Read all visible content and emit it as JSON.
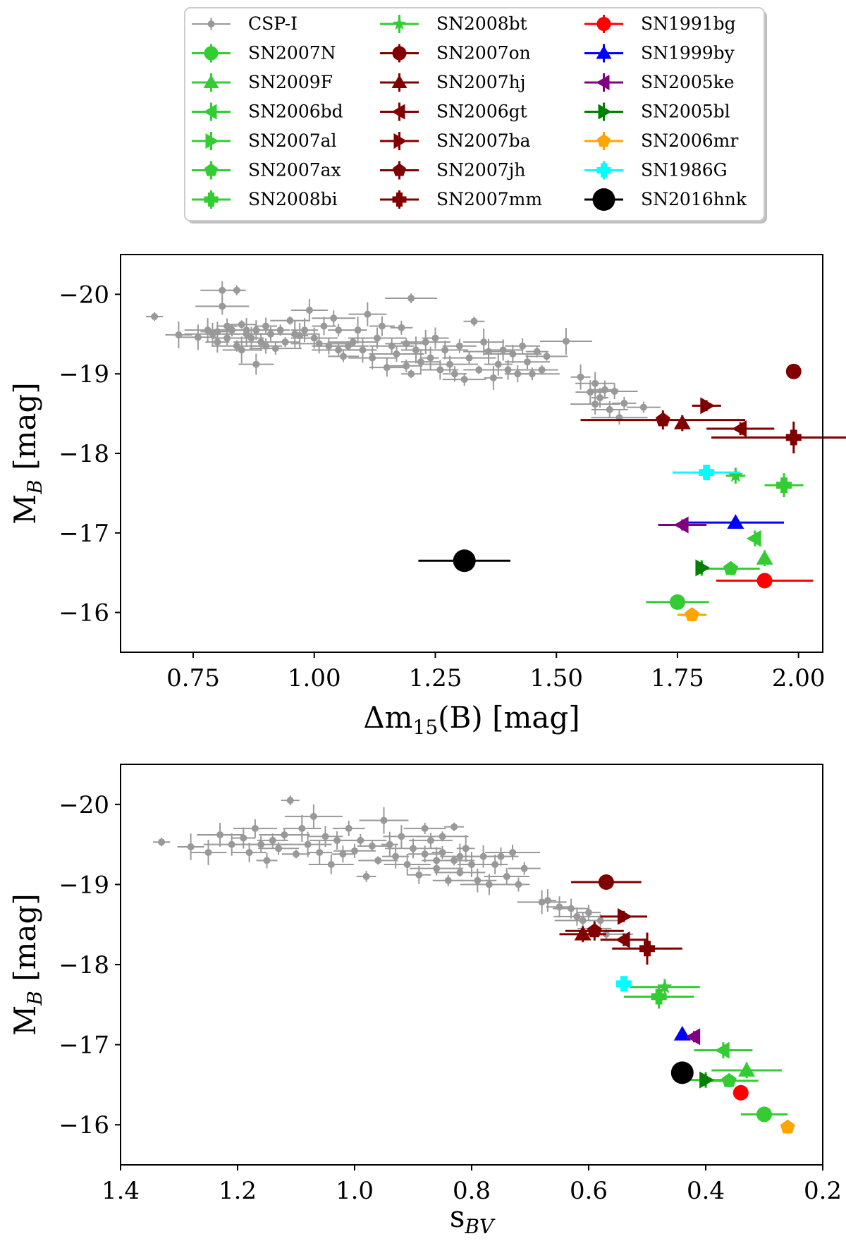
{
  "figure": {
    "legend": {
      "entries": [
        {
          "label": "CSP-I",
          "color": "#999999",
          "marker": "circle-small"
        },
        {
          "label": "SN2007N",
          "color": "#33cc33",
          "marker": "circle"
        },
        {
          "label": "SN2009F",
          "color": "#33cc33",
          "marker": "triangle-up"
        },
        {
          "label": "SN2006bd",
          "color": "#33cc33",
          "marker": "triangle-left"
        },
        {
          "label": "SN2007al",
          "color": "#33cc33",
          "marker": "triangle-right"
        },
        {
          "label": "SN2007ax",
          "color": "#33cc33",
          "marker": "pentagon"
        },
        {
          "label": "SN2008bi",
          "color": "#33cc33",
          "marker": "plus"
        },
        {
          "label": "SN2008bt",
          "color": "#33cc33",
          "marker": "star"
        },
        {
          "label": "SN2007on",
          "color": "#800000",
          "marker": "circle"
        },
        {
          "label": "SN2007hj",
          "color": "#800000",
          "marker": "triangle-up"
        },
        {
          "label": "SN2006gt",
          "color": "#800000",
          "marker": "triangle-left"
        },
        {
          "label": "SN2007ba",
          "color": "#800000",
          "marker": "triangle-right"
        },
        {
          "label": "SN2007jh",
          "color": "#800000",
          "marker": "pentagon"
        },
        {
          "label": "SN2007mm",
          "color": "#800000",
          "marker": "plus"
        },
        {
          "label": "SN1991bg",
          "color": "#ff0000",
          "marker": "circle"
        },
        {
          "label": "SN1999by",
          "color": "#0000ff",
          "marker": "triangle-up"
        },
        {
          "label": "SN2005ke",
          "color": "#800080",
          "marker": "triangle-left"
        },
        {
          "label": "SN2005bl",
          "color": "#007f00",
          "marker": "triangle-right"
        },
        {
          "label": "SN2006mr",
          "color": "#ffa500",
          "marker": "pentagon"
        },
        {
          "label": "SN1986G",
          "color": "#00ffff",
          "marker": "plus"
        },
        {
          "label": "SN2016hnk",
          "color": "#000000",
          "marker": "circle-big"
        }
      ]
    }
  },
  "chart_data": [
    {
      "type": "scatter",
      "title": "",
      "xlabel": "Δm15(B) [mag]",
      "ylabel": "MB [mag]",
      "xlim": [
        0.6,
        2.05
      ],
      "ylim": [
        -15.5,
        -20.5
      ],
      "y_inverted": true,
      "xticks": [
        0.75,
        1.0,
        1.25,
        1.5,
        1.75,
        2.0
      ],
      "xtick_labels": [
        "0.75",
        "1.00",
        "1.25",
        "1.50",
        "1.75",
        "2.00"
      ],
      "yticks": [
        -20,
        -19,
        -18,
        -17,
        -16
      ],
      "ytick_labels": [
        "−20",
        "−19",
        "−18",
        "−17",
        "−16"
      ],
      "grid": false,
      "csp_points": [
        [
          0.67,
          -19.72
        ],
        [
          0.72,
          -19.49
        ],
        [
          0.76,
          -19.46
        ],
        [
          0.78,
          -19.55
        ],
        [
          0.79,
          -19.5
        ],
        [
          0.8,
          -19.4
        ],
        [
          0.8,
          -19.53
        ],
        [
          0.81,
          -20.05
        ],
        [
          0.81,
          -19.85
        ],
        [
          0.82,
          -19.6
        ],
        [
          0.82,
          -19.45
        ],
        [
          0.83,
          -19.55
        ],
        [
          0.84,
          -19.35
        ],
        [
          0.84,
          -20.05
        ],
        [
          0.85,
          -19.62
        ],
        [
          0.85,
          -19.3
        ],
        [
          0.86,
          -19.5
        ],
        [
          0.86,
          -19.55
        ],
        [
          0.87,
          -19.45
        ],
        [
          0.88,
          -19.12
        ],
        [
          0.88,
          -19.55
        ],
        [
          0.89,
          -19.4
        ],
        [
          0.9,
          -19.6
        ],
        [
          0.9,
          -19.35
        ],
        [
          0.91,
          -19.5
        ],
        [
          0.92,
          -19.32
        ],
        [
          0.93,
          -19.55
        ],
        [
          0.94,
          -19.4
        ],
        [
          0.95,
          -19.67
        ],
        [
          0.96,
          -19.5
        ],
        [
          0.97,
          -19.48
        ],
        [
          0.98,
          -19.55
        ],
        [
          0.99,
          -19.8
        ],
        [
          1.0,
          -19.45
        ],
        [
          1.01,
          -19.38
        ],
        [
          1.02,
          -19.6
        ],
        [
          1.03,
          -19.35
        ],
        [
          1.04,
          -19.7
        ],
        [
          1.05,
          -19.3
        ],
        [
          1.05,
          -19.55
        ],
        [
          1.06,
          -19.22
        ],
        [
          1.07,
          -19.35
        ],
        [
          1.08,
          -19.4
        ],
        [
          1.09,
          -19.55
        ],
        [
          1.1,
          -19.3
        ],
        [
          1.11,
          -19.75
        ],
        [
          1.12,
          -19.2
        ],
        [
          1.13,
          -19.45
        ],
        [
          1.14,
          -19.6
        ],
        [
          1.15,
          -19.08
        ],
        [
          1.16,
          -19.35
        ],
        [
          1.17,
          -19.25
        ],
        [
          1.18,
          -19.58
        ],
        [
          1.19,
          -19.1
        ],
        [
          1.19,
          -19.38
        ],
        [
          1.2,
          -19.95
        ],
        [
          1.2,
          -19.0
        ],
        [
          1.21,
          -19.3
        ],
        [
          1.22,
          -19.15
        ],
        [
          1.23,
          -19.4
        ],
        [
          1.24,
          -19.2
        ],
        [
          1.25,
          -19.45
        ],
        [
          1.26,
          -19.05
        ],
        [
          1.27,
          -19.3
        ],
        [
          1.28,
          -19.12
        ],
        [
          1.29,
          -19.0
        ],
        [
          1.3,
          -19.35
        ],
        [
          1.31,
          -18.93
        ],
        [
          1.32,
          -19.2
        ],
        [
          1.33,
          -19.66
        ],
        [
          1.34,
          -19.05
        ],
        [
          1.35,
          -19.4
        ],
        [
          1.36,
          -19.28
        ],
        [
          1.37,
          -18.95
        ],
        [
          1.38,
          -19.12
        ],
        [
          1.39,
          -19.3
        ],
        [
          1.4,
          -19.05
        ],
        [
          1.41,
          -19.25
        ],
        [
          1.42,
          -19.0
        ],
        [
          1.43,
          -19.35
        ],
        [
          1.44,
          -19.15
        ],
        [
          1.45,
          -19.0
        ],
        [
          1.46,
          -19.28
        ],
        [
          1.47,
          -19.05
        ],
        [
          1.48,
          -19.22
        ],
        [
          1.52,
          -19.41
        ],
        [
          1.55,
          -18.96
        ],
        [
          1.57,
          -18.77
        ],
        [
          1.58,
          -18.88
        ],
        [
          1.58,
          -18.62
        ],
        [
          1.59,
          -18.7
        ],
        [
          1.6,
          -18.8
        ],
        [
          1.61,
          -18.55
        ],
        [
          1.62,
          -18.78
        ],
        [
          1.63,
          -18.45
        ],
        [
          1.64,
          -18.63
        ],
        [
          1.68,
          -18.58
        ]
      ],
      "series": [
        {
          "name": "SN2007N",
          "x": 1.75,
          "y": -16.13,
          "xerr": 0.065,
          "yerr": 0.08
        },
        {
          "name": "SN2009F",
          "x": 1.93,
          "y": -16.68,
          "xerr": 0.0,
          "yerr": 0.1
        },
        {
          "name": "SN2006bd",
          "x": 1.91,
          "y": -16.93,
          "xerr": 0.0,
          "yerr": 0.1
        },
        {
          "name": "SN2007al",
          "x": 1.8,
          "y": -16.56,
          "xerr": 0.0,
          "yerr": 0.1
        },
        {
          "name": "SN2007ax",
          "x": 1.86,
          "y": -16.55,
          "xerr": 0.06,
          "yerr": 0.08
        },
        {
          "name": "SN2008bi",
          "x": 1.97,
          "y": -17.6,
          "xerr": 0.04,
          "yerr": 0.15
        },
        {
          "name": "SN2008bt",
          "x": 1.87,
          "y": -17.72,
          "xerr": 0.02,
          "yerr": 0.1
        },
        {
          "name": "SN2007on",
          "x": 1.99,
          "y": -19.03,
          "xerr": 0.0,
          "yerr": 0.08
        },
        {
          "name": "SN2007hj",
          "x": 1.76,
          "y": -18.38,
          "xerr": 0.0,
          "yerr": 0.1
        },
        {
          "name": "SN2006gt",
          "x": 1.88,
          "y": -18.31,
          "xerr": 0.07,
          "yerr": 0.08
        },
        {
          "name": "SN2007ba",
          "x": 1.81,
          "y": -18.6,
          "xerr": 0.03,
          "yerr": 0.07
        },
        {
          "name": "SN2007jh",
          "x": 1.72,
          "y": -18.42,
          "xerr": 0.17,
          "yerr": 0.12
        },
        {
          "name": "SN2007mm",
          "x": 1.99,
          "y": -18.2,
          "xerr": 0.17,
          "yerr": 0.2
        },
        {
          "name": "SN1991bg",
          "x": 1.93,
          "y": -16.4,
          "xerr": 0.1,
          "yerr": 0.07
        },
        {
          "name": "SN1999by",
          "x": 1.87,
          "y": -17.13,
          "xerr": 0.1,
          "yerr": 0.07
        },
        {
          "name": "SN2005ke",
          "x": 1.76,
          "y": -17.1,
          "xerr": 0.05,
          "yerr": 0.07
        },
        {
          "name": "SN2005bl",
          "x": 1.8,
          "y": -16.56,
          "xerr": 0.0,
          "yerr": 0.08
        },
        {
          "name": "SN2006mr",
          "x": 1.78,
          "y": -15.97,
          "xerr": 0.03,
          "yerr": 0.08
        },
        {
          "name": "SN1986G",
          "x": 1.81,
          "y": -17.76,
          "xerr": 0.07,
          "yerr": 0.07
        },
        {
          "name": "SN2016hnk",
          "x": 1.31,
          "y": -16.65,
          "xerr": 0.095,
          "yerr": 0.0
        }
      ]
    },
    {
      "type": "scatter",
      "title": "",
      "xlabel": "sBV",
      "ylabel": "MB [mag]",
      "xlim": [
        1.4,
        0.2
      ],
      "ylim": [
        -15.5,
        -20.5
      ],
      "y_inverted": true,
      "xticks": [
        1.4,
        1.2,
        1.0,
        0.8,
        0.6,
        0.4,
        0.2
      ],
      "xtick_labels": [
        "1.4",
        "1.2",
        "1.0",
        "0.8",
        "0.6",
        "0.4",
        "0.2"
      ],
      "yticks": [
        -20,
        -19,
        -18,
        -17,
        -16
      ],
      "ytick_labels": [
        "−20",
        "−19",
        "−18",
        "−17",
        "−16"
      ],
      "grid": false,
      "csp_points": [
        [
          1.33,
          -19.53
        ],
        [
          1.28,
          -19.47
        ],
        [
          1.25,
          -19.4
        ],
        [
          1.23,
          -19.62
        ],
        [
          1.21,
          -19.5
        ],
        [
          1.19,
          -19.58
        ],
        [
          1.18,
          -19.4
        ],
        [
          1.17,
          -19.7
        ],
        [
          1.16,
          -19.5
        ],
        [
          1.15,
          -19.3
        ],
        [
          1.14,
          -19.55
        ],
        [
          1.13,
          -19.45
        ],
        [
          1.12,
          -19.62
        ],
        [
          1.11,
          -20.05
        ],
        [
          1.1,
          -19.38
        ],
        [
          1.09,
          -19.7
        ],
        [
          1.08,
          -19.5
        ],
        [
          1.07,
          -19.85
        ],
        [
          1.06,
          -19.4
        ],
        [
          1.05,
          -19.6
        ],
        [
          1.04,
          -19.25
        ],
        [
          1.03,
          -19.55
        ],
        [
          1.02,
          -19.38
        ],
        [
          1.01,
          -19.7
        ],
        [
          1.0,
          -19.42
        ],
        [
          0.99,
          -19.55
        ],
        [
          0.98,
          -19.1
        ],
        [
          0.97,
          -19.48
        ],
        [
          0.96,
          -19.3
        ],
        [
          0.95,
          -19.8
        ],
        [
          0.94,
          -19.5
        ],
        [
          0.93,
          -19.35
        ],
        [
          0.92,
          -19.6
        ],
        [
          0.91,
          -19.25
        ],
        [
          0.9,
          -19.45
        ],
        [
          0.89,
          -19.12
        ],
        [
          0.88,
          -19.38
        ],
        [
          0.87,
          -19.55
        ],
        [
          0.86,
          -19.2
        ],
        [
          0.85,
          -19.4
        ],
        [
          0.84,
          -19.05
        ],
        [
          0.83,
          -19.3
        ],
        [
          0.82,
          -19.15
        ],
        [
          0.81,
          -19.45
        ],
        [
          0.8,
          -19.25
        ],
        [
          0.79,
          -19.05
        ],
        [
          0.78,
          -19.35
        ],
        [
          0.77,
          -19.0
        ],
        [
          0.76,
          -19.25
        ],
        [
          0.75,
          -19.35
        ],
        [
          0.74,
          -19.1
        ],
        [
          0.73,
          -19.4
        ],
        [
          0.72,
          -19.0
        ],
        [
          0.71,
          -19.2
        ],
        [
          0.88,
          -19.7
        ],
        [
          0.85,
          -19.6
        ],
        [
          0.83,
          -19.72
        ],
        [
          0.86,
          -19.3
        ],
        [
          0.82,
          -19.35
        ],
        [
          0.68,
          -18.78
        ],
        [
          0.67,
          -18.8
        ],
        [
          0.65,
          -18.72
        ],
        [
          0.63,
          -18.7
        ],
        [
          0.62,
          -18.6
        ],
        [
          0.61,
          -18.55
        ],
        [
          0.6,
          -18.65
        ],
        [
          0.59,
          -18.45
        ],
        [
          0.58,
          -18.55
        ],
        [
          0.57,
          -18.38
        ]
      ],
      "series": [
        {
          "name": "SN2007N",
          "x": 0.3,
          "y": -16.13,
          "xerr": 0.04,
          "yerr": 0.08
        },
        {
          "name": "SN2009F",
          "x": 0.33,
          "y": -16.68,
          "xerr": 0.06,
          "yerr": 0.1
        },
        {
          "name": "SN2006bd",
          "x": 0.37,
          "y": -16.93,
          "xerr": 0.05,
          "yerr": 0.1
        },
        {
          "name": "SN2007al",
          "x": 0.4,
          "y": -16.56,
          "xerr": 0.03,
          "yerr": 0.1
        },
        {
          "name": "SN2007ax",
          "x": 0.36,
          "y": -16.55,
          "xerr": 0.05,
          "yerr": 0.08
        },
        {
          "name": "SN2008bi",
          "x": 0.48,
          "y": -17.6,
          "xerr": 0.06,
          "yerr": 0.15
        },
        {
          "name": "SN2008bt",
          "x": 0.47,
          "y": -17.72,
          "xerr": 0.06,
          "yerr": 0.1
        },
        {
          "name": "SN2007on",
          "x": 0.57,
          "y": -19.03,
          "xerr": 0.06,
          "yerr": 0.08
        },
        {
          "name": "SN2007hj",
          "x": 0.61,
          "y": -18.38,
          "xerr": 0.04,
          "yerr": 0.1
        },
        {
          "name": "SN2006gt",
          "x": 0.54,
          "y": -18.31,
          "xerr": 0.04,
          "yerr": 0.08
        },
        {
          "name": "SN2007ba",
          "x": 0.54,
          "y": -18.6,
          "xerr": 0.04,
          "yerr": 0.07
        },
        {
          "name": "SN2007jh",
          "x": 0.59,
          "y": -18.42,
          "xerr": 0.05,
          "yerr": 0.12
        },
        {
          "name": "SN2007mm",
          "x": 0.5,
          "y": -18.2,
          "xerr": 0.06,
          "yerr": 0.2
        },
        {
          "name": "SN1991bg",
          "x": 0.34,
          "y": -16.4,
          "xerr": 0.0,
          "yerr": 0.07
        },
        {
          "name": "SN1999by",
          "x": 0.44,
          "y": -17.13,
          "xerr": 0.0,
          "yerr": 0.07
        },
        {
          "name": "SN2005ke",
          "x": 0.42,
          "y": -17.1,
          "xerr": 0.0,
          "yerr": 0.07
        },
        {
          "name": "SN2005bl",
          "x": 0.4,
          "y": -16.56,
          "xerr": 0.0,
          "yerr": 0.08
        },
        {
          "name": "SN2006mr",
          "x": 0.26,
          "y": -15.97,
          "xerr": 0.0,
          "yerr": 0.08
        },
        {
          "name": "SN1986G",
          "x": 0.54,
          "y": -17.76,
          "xerr": 0.0,
          "yerr": 0.07
        },
        {
          "name": "SN2016hnk",
          "x": 0.44,
          "y": -16.65,
          "xerr": 0.0,
          "yerr": 0.0
        }
      ]
    }
  ]
}
